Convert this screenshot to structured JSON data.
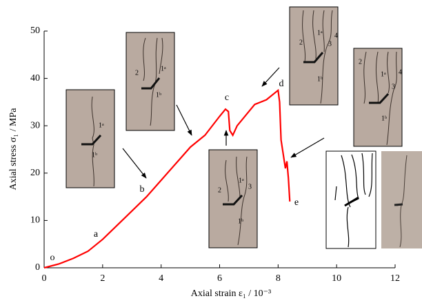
{
  "chart_data": {
    "type": "line",
    "xlabel": "Axial strain ε₁ / 10⁻³",
    "ylabel": "Axial stress σ₁ / MPa",
    "x": [
      0,
      0.5,
      1,
      1.5,
      2,
      2.5,
      3,
      3.5,
      4,
      4.5,
      5,
      5.5,
      6,
      6.2,
      6.3,
      6.35,
      6.45,
      6.6,
      7,
      7.2,
      7.6,
      8,
      8.05,
      8.1,
      8.15,
      8.2,
      8.25,
      8.3,
      8.35,
      8.4
    ],
    "values": [
      0,
      0.8,
      2,
      3.5,
      6,
      9,
      12,
      15,
      18.5,
      22,
      25.5,
      28,
      32,
      33.5,
      33,
      29,
      28,
      30,
      33,
      34.5,
      35.5,
      37.5,
      35,
      27,
      25,
      23,
      21,
      22.5,
      19,
      14
    ],
    "color": "#ff0000",
    "xlim": [
      0,
      12
    ],
    "xticks": [
      0,
      2,
      4,
      6,
      8,
      10,
      12
    ],
    "ylim": [
      0,
      50
    ],
    "yticks": [
      0,
      10,
      20,
      30,
      40,
      50
    ],
    "annotations": [
      "o",
      "a",
      "b",
      "c",
      "d",
      "e"
    ]
  },
  "insets": [
    {
      "labels": [
        "1ᵃ",
        "1ᵇ"
      ]
    },
    {
      "labels": [
        "2",
        "1ᵃ",
        "1ᵇ"
      ]
    },
    {
      "labels": [
        "2",
        "1ᵃ",
        "3",
        "1ᵇ"
      ]
    },
    {
      "labels": [
        "2",
        "1ᵃ",
        "3",
        "4",
        "1ᵇ"
      ]
    },
    {
      "labels": [
        "2",
        "1ᵃ",
        "3",
        "4",
        "1ᵇ"
      ]
    }
  ]
}
